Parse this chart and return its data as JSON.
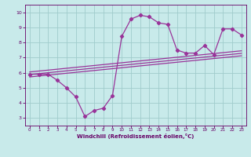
{
  "title": "",
  "xlabel": "Windchill (Refroidissement éolien,°C)",
  "bg_color": "#c8eaea",
  "grid_color": "#a0cccc",
  "line_color": "#993399",
  "x_ticks": [
    0,
    1,
    2,
    3,
    4,
    5,
    6,
    7,
    8,
    9,
    10,
    11,
    12,
    13,
    14,
    15,
    16,
    17,
    18,
    19,
    20,
    21,
    22,
    23
  ],
  "y_ticks": [
    3,
    4,
    5,
    6,
    7,
    8,
    9,
    10
  ],
  "xlim": [
    -0.5,
    23.5
  ],
  "ylim": [
    2.5,
    10.5
  ],
  "main_x": [
    0,
    1,
    2,
    3,
    4,
    5,
    6,
    7,
    8,
    9,
    10,
    11,
    12,
    13,
    14,
    15,
    16,
    17,
    18,
    19,
    20,
    21,
    22,
    23
  ],
  "main_y": [
    5.9,
    5.9,
    5.9,
    5.5,
    5.0,
    4.4,
    3.1,
    3.5,
    3.65,
    4.5,
    8.4,
    9.55,
    9.8,
    9.7,
    9.3,
    9.2,
    7.5,
    7.3,
    7.3,
    7.8,
    7.2,
    8.9,
    8.9,
    8.5
  ],
  "line1_x": [
    0,
    23
  ],
  "line1_y": [
    6.05,
    7.45
  ],
  "line2_x": [
    0,
    23
  ],
  "line2_y": [
    5.88,
    7.28
  ],
  "line3_x": [
    0,
    23
  ],
  "line3_y": [
    5.72,
    7.12
  ],
  "figsize": [
    3.2,
    2.0
  ],
  "dpi": 100
}
